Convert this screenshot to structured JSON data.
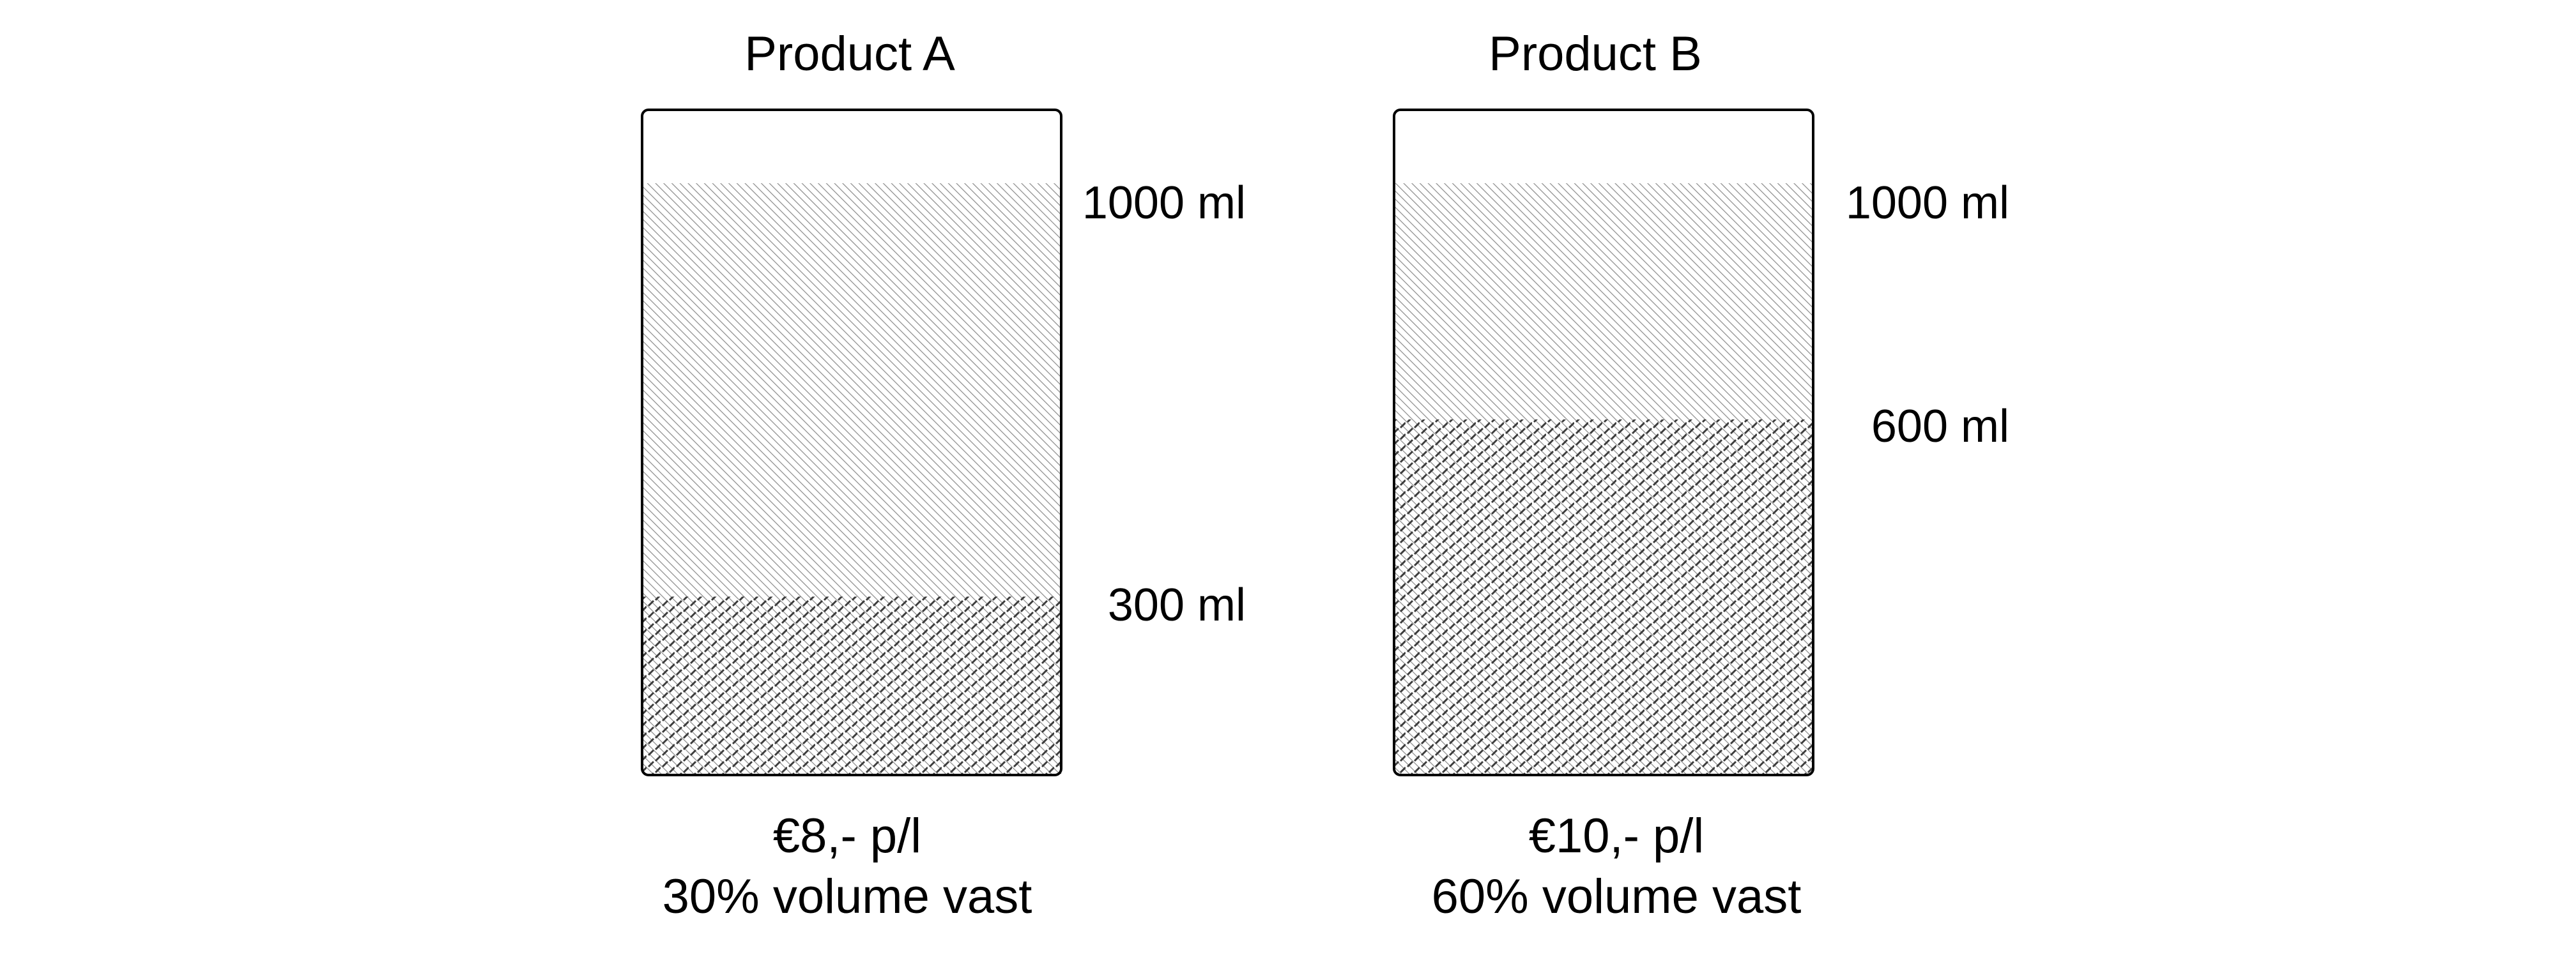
{
  "products": [
    {
      "title": "Product A",
      "capacity_label": "1000 ml",
      "solid_label": "300 ml",
      "price_label": "€8,- p/l",
      "volume_label": "30% volume vast",
      "total_ml": 1000,
      "solid_ml": 300
    },
    {
      "title": "Product B",
      "capacity_label": "1000 ml",
      "solid_label": "600 ml",
      "price_label": "€10,- p/l",
      "volume_label": "60% volume vast",
      "total_ml": 1000,
      "solid_ml": 600
    }
  ],
  "colors": {
    "outline": "#000000",
    "liquid_hatch": "#8a8a8a",
    "solid_dash": "#3c3c3c",
    "background": "#ffffff"
  }
}
